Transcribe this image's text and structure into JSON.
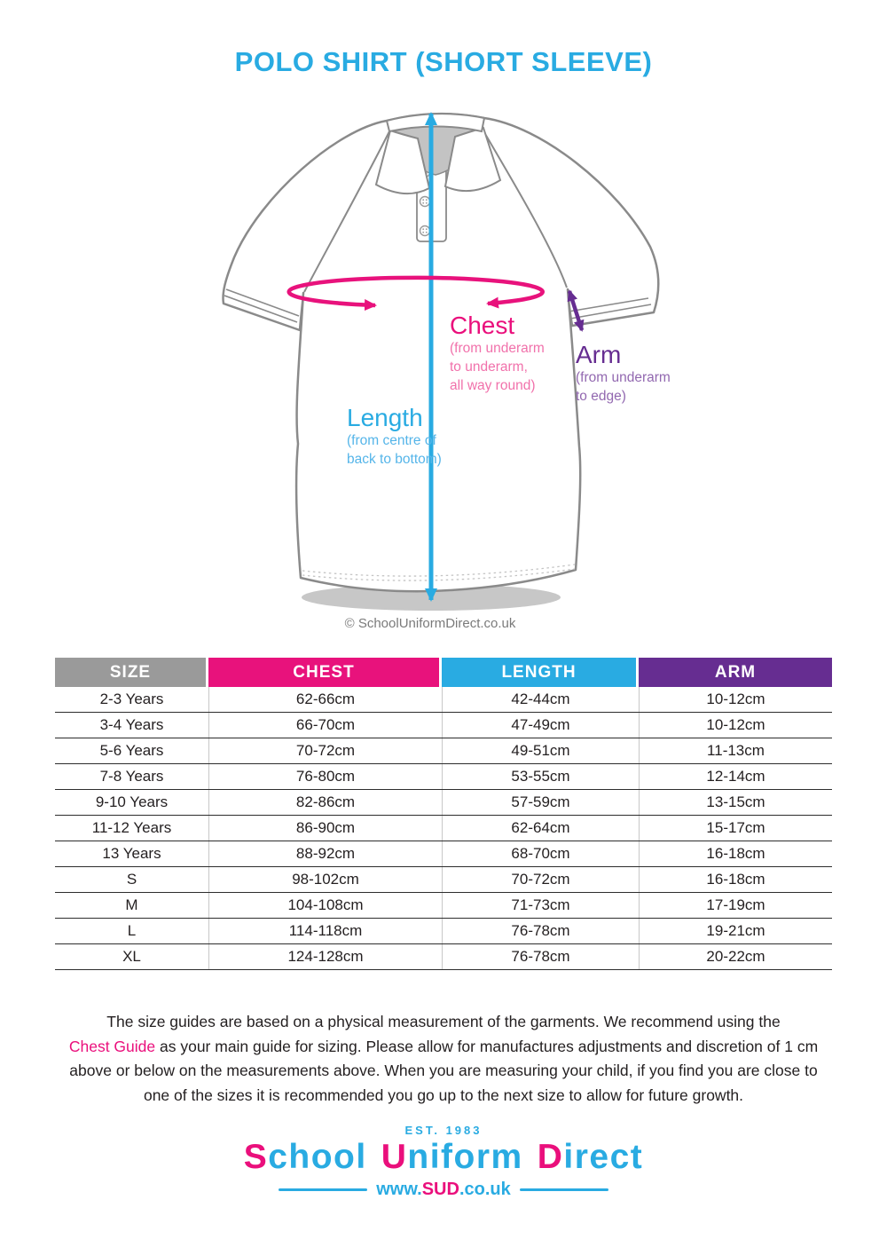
{
  "title": "POLO SHIRT (SHORT SLEEVE)",
  "colors": {
    "blue": "#29ABE2",
    "pink": "#EA0F7C",
    "purple": "#662D91",
    "gray_header": "#9A9A9A",
    "outline_gray": "#8A8A8A"
  },
  "diagram": {
    "copyright": "© SchoolUniformDirect.co.uk",
    "labels": {
      "chest": {
        "title": "Chest",
        "lines": [
          "(from underarm",
          "to underarm,",
          "all way round)"
        ]
      },
      "arm": {
        "title": "Arm",
        "lines": [
          "(from underarm",
          "to edge)"
        ]
      },
      "length": {
        "title": "Length",
        "lines": [
          "(from centre of",
          "back to bottom)"
        ]
      }
    }
  },
  "table": {
    "headers": [
      {
        "label": "SIZE",
        "color": "#9A9A9A"
      },
      {
        "label": "CHEST",
        "color": "#E8127C"
      },
      {
        "label": "LENGTH",
        "color": "#29ABE2"
      },
      {
        "label": "ARM",
        "color": "#662D91"
      }
    ],
    "rows": [
      [
        "2-3 Years",
        "62-66cm",
        "42-44cm",
        "10-12cm"
      ],
      [
        "3-4 Years",
        "66-70cm",
        "47-49cm",
        "10-12cm"
      ],
      [
        "5-6 Years",
        "70-72cm",
        "49-51cm",
        "11-13cm"
      ],
      [
        "7-8 Years",
        "76-80cm",
        "53-55cm",
        "12-14cm"
      ],
      [
        "9-10 Years",
        "82-86cm",
        "57-59cm",
        "13-15cm"
      ],
      [
        "11-12 Years",
        "86-90cm",
        "62-64cm",
        "15-17cm"
      ],
      [
        "13 Years",
        "88-92cm",
        "68-70cm",
        "16-18cm"
      ],
      [
        "S",
        "98-102cm",
        "70-72cm",
        "16-18cm"
      ],
      [
        "M",
        "104-108cm",
        "71-73cm",
        "17-19cm"
      ],
      [
        "L",
        "114-118cm",
        "76-78cm",
        "19-21cm"
      ],
      [
        "XL",
        "124-128cm",
        "76-78cm",
        "20-22cm"
      ]
    ]
  },
  "note": {
    "line1": "The size guides are based on a physical measurement of the garments. We recommend using the",
    "line2_highlight": "Chest Guide",
    "line2_rest": " as your main guide for sizing. Please allow for manufactures adjustments and discretion of  1 cm",
    "line3": "above or below on the measurements above. When you are measuring your child, if you find you are close to",
    "line4": "one of the sizes it is recommended you go up to the next size to allow for future growth."
  },
  "logo": {
    "established": "EST. 1983",
    "words": [
      {
        "cap": "S",
        "rest": "chool"
      },
      {
        "cap": "U",
        "rest": "niform"
      },
      {
        "cap": "D",
        "rest": "irect"
      }
    ],
    "web": {
      "www": "www.",
      "sud": "SUD",
      "couk": ".co.uk"
    }
  }
}
